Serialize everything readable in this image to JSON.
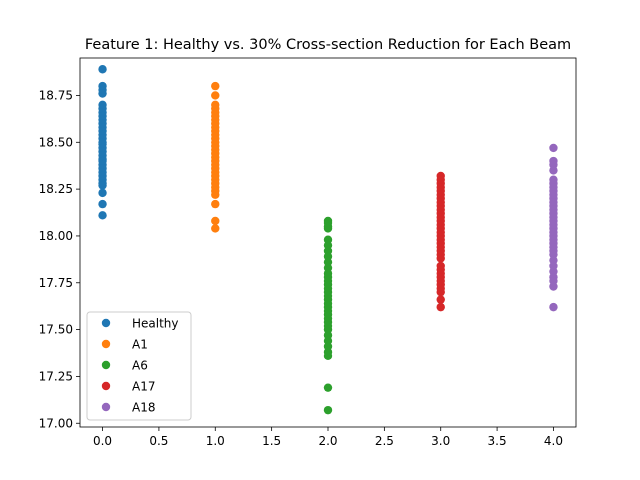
{
  "chart_data": {
    "type": "scatter",
    "title": "Feature 1: Healthy vs. 30% Cross-section Reduction for Each Beam",
    "xlabel": "",
    "ylabel": "",
    "xlim": [
      -0.2,
      4.2
    ],
    "ylim": [
      16.98,
      18.95
    ],
    "xticks": [
      0.0,
      0.5,
      1.0,
      1.5,
      2.0,
      2.5,
      3.0,
      3.5,
      4.0
    ],
    "xtick_labels": [
      "0.0",
      "0.5",
      "1.0",
      "1.5",
      "2.0",
      "2.5",
      "3.0",
      "3.5",
      "4.0"
    ],
    "yticks": [
      17.0,
      17.25,
      17.5,
      17.75,
      18.0,
      18.25,
      18.5,
      18.75
    ],
    "ytick_labels": [
      "17.00",
      "17.25",
      "17.50",
      "17.75",
      "18.00",
      "18.25",
      "18.50",
      "18.75"
    ],
    "grid": false,
    "legend_position": "lower-left",
    "series": [
      {
        "name": "Healthy",
        "color": "#1f77b4",
        "x": 0,
        "y": [
          18.89,
          18.8,
          18.78,
          18.76,
          18.7,
          18.68,
          18.66,
          18.64,
          18.62,
          18.6,
          18.58,
          18.56,
          18.54,
          18.52,
          18.5,
          18.49,
          18.47,
          18.45,
          18.43,
          18.41,
          18.4,
          18.38,
          18.36,
          18.34,
          18.32,
          18.3,
          18.28,
          18.27,
          18.23,
          18.17,
          18.11
        ]
      },
      {
        "name": "A1",
        "color": "#ff7f0e",
        "x": 1,
        "y": [
          18.8,
          18.75,
          18.7,
          18.68,
          18.66,
          18.64,
          18.62,
          18.6,
          18.58,
          18.56,
          18.54,
          18.52,
          18.5,
          18.48,
          18.46,
          18.44,
          18.42,
          18.4,
          18.38,
          18.36,
          18.34,
          18.32,
          18.3,
          18.28,
          18.26,
          18.24,
          18.22,
          18.17,
          18.08,
          18.04
        ]
      },
      {
        "name": "A6",
        "color": "#2ca02c",
        "x": 2,
        "y": [
          18.08,
          18.07,
          18.05,
          18.04,
          17.98,
          17.95,
          17.92,
          17.89,
          17.86,
          17.83,
          17.8,
          17.78,
          17.76,
          17.74,
          17.72,
          17.7,
          17.68,
          17.66,
          17.64,
          17.62,
          17.6,
          17.58,
          17.56,
          17.54,
          17.52,
          17.5,
          17.47,
          17.44,
          17.41,
          17.38,
          17.36,
          17.19,
          17.07
        ]
      },
      {
        "name": "A17",
        "color": "#d62728",
        "x": 3,
        "y": [
          18.32,
          18.3,
          18.28,
          18.26,
          18.24,
          18.22,
          18.2,
          18.18,
          18.16,
          18.14,
          18.12,
          18.1,
          18.08,
          18.06,
          18.04,
          18.02,
          18.0,
          17.98,
          17.96,
          17.94,
          17.92,
          17.9,
          17.88,
          17.84,
          17.82,
          17.8,
          17.78,
          17.76,
          17.74,
          17.72,
          17.7,
          17.66,
          17.62
        ]
      },
      {
        "name": "A18",
        "color": "#9467bd",
        "x": 4,
        "y": [
          18.47,
          18.4,
          18.38,
          18.35,
          18.3,
          18.28,
          18.26,
          18.24,
          18.22,
          18.2,
          18.18,
          18.16,
          18.14,
          18.12,
          18.1,
          18.08,
          18.06,
          18.04,
          18.02,
          18.0,
          17.98,
          17.96,
          17.94,
          17.92,
          17.9,
          17.87,
          17.84,
          17.81,
          17.78,
          17.76,
          17.73,
          17.62
        ]
      }
    ]
  }
}
